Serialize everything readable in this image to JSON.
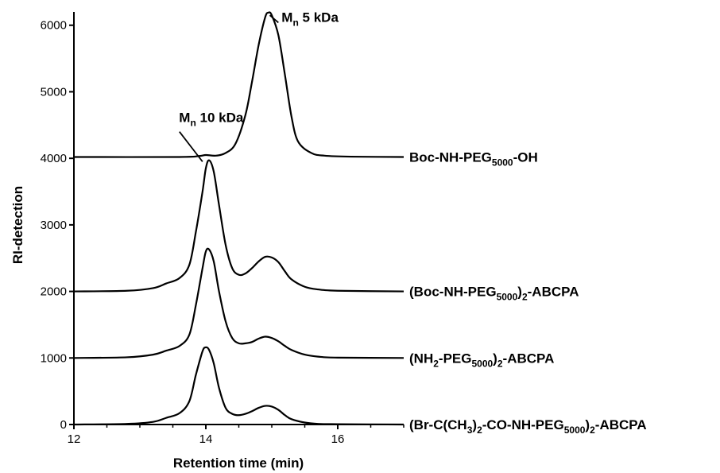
{
  "chart_data": {
    "type": "line",
    "xlabel": "Retention time (min)",
    "ylabel": "RI-detection",
    "xlim": [
      12,
      17
    ],
    "ylim": [
      0,
      6200
    ],
    "x_ticks": [
      "12",
      "14",
      "16"
    ],
    "y_ticks": [
      "0",
      "1000",
      "2000",
      "3000",
      "4000",
      "5000",
      "6000"
    ],
    "grid": false,
    "series": [
      {
        "name": "Boc-NH-PEG5000-OH",
        "label_parts": [
          {
            "t": "Boc-NH-PEG"
          },
          {
            "t": "5000",
            "sub": true
          },
          {
            "t": "-OH"
          }
        ],
        "x": [
          12.0,
          13.6,
          13.9,
          14.0,
          14.15,
          14.3,
          14.45,
          14.6,
          14.7,
          14.8,
          14.9,
          14.95,
          15.0,
          15.1,
          15.2,
          15.3,
          15.4,
          15.6,
          15.8,
          16.2,
          17.0
        ],
        "y": [
          4020,
          4020,
          4035,
          4050,
          4040,
          4080,
          4220,
          4650,
          5150,
          5700,
          6120,
          6190,
          6150,
          5850,
          5250,
          4620,
          4250,
          4080,
          4040,
          4025,
          4020
        ]
      },
      {
        "name": "(Boc-NH-PEG5000)2-ABCPA",
        "label_parts": [
          {
            "t": "(Boc-NH-PEG"
          },
          {
            "t": "5000",
            "sub": true
          },
          {
            "t": ")"
          },
          {
            "t": "2",
            "sub": true
          },
          {
            "t": "-ABCPA"
          }
        ],
        "x": [
          12.0,
          12.8,
          13.2,
          13.4,
          13.6,
          13.75,
          13.85,
          13.95,
          14.0,
          14.05,
          14.12,
          14.2,
          14.3,
          14.4,
          14.5,
          14.6,
          14.7,
          14.8,
          14.9,
          15.0,
          15.1,
          15.2,
          15.3,
          15.5,
          15.7,
          16.0,
          17.0
        ],
        "y": [
          2000,
          2010,
          2050,
          2120,
          2200,
          2400,
          2900,
          3500,
          3850,
          3970,
          3800,
          3300,
          2700,
          2350,
          2250,
          2270,
          2350,
          2450,
          2520,
          2510,
          2440,
          2300,
          2180,
          2070,
          2030,
          2010,
          2000
        ]
      },
      {
        "name": "(NH2-PEG5000)2-ABCPA",
        "label_parts": [
          {
            "t": "(NH"
          },
          {
            "t": "2",
            "sub": true
          },
          {
            "t": "-PEG"
          },
          {
            "t": "5000",
            "sub": true
          },
          {
            "t": ")"
          },
          {
            "t": "2",
            "sub": true
          },
          {
            "t": "-ABCPA"
          }
        ],
        "x": [
          12.0,
          12.8,
          13.2,
          13.4,
          13.6,
          13.75,
          13.85,
          13.95,
          14.0,
          14.05,
          14.12,
          14.2,
          14.3,
          14.4,
          14.5,
          14.6,
          14.7,
          14.8,
          14.9,
          15.0,
          15.1,
          15.2,
          15.3,
          15.5,
          15.7,
          16.0,
          17.0
        ],
        "y": [
          1000,
          1010,
          1050,
          1110,
          1180,
          1350,
          1800,
          2350,
          2600,
          2630,
          2450,
          2000,
          1550,
          1300,
          1220,
          1220,
          1240,
          1290,
          1320,
          1300,
          1250,
          1180,
          1120,
          1050,
          1020,
          1005,
          1000
        ]
      },
      {
        "name": "(Br-C(CH3)2-CO-NH-PEG5000)2-ABCPA",
        "label_parts": [
          {
            "t": "(Br-C(CH"
          },
          {
            "t": "3",
            "sub": true
          },
          {
            "t": ")"
          },
          {
            "t": "2",
            "sub": true
          },
          {
            "t": "-CO-NH-PEG"
          },
          {
            "t": "5000",
            "sub": true
          },
          {
            "t": ")"
          },
          {
            "t": "2",
            "sub": true
          },
          {
            "t": "-ABCPA"
          }
        ],
        "x": [
          12.0,
          12.8,
          13.2,
          13.4,
          13.6,
          13.75,
          13.85,
          13.95,
          14.0,
          14.05,
          14.12,
          14.2,
          14.3,
          14.4,
          14.5,
          14.6,
          14.7,
          14.8,
          14.9,
          15.0,
          15.1,
          15.2,
          15.3,
          15.5,
          15.7,
          16.0,
          17.0
        ],
        "y": [
          0,
          10,
          40,
          100,
          170,
          350,
          750,
          1100,
          1160,
          1120,
          920,
          550,
          250,
          160,
          140,
          160,
          200,
          250,
          280,
          270,
          220,
          140,
          80,
          30,
          10,
          5,
          0
        ]
      }
    ],
    "annotations": [
      {
        "parts": [
          {
            "t": "M"
          },
          {
            "t": "n",
            "sub": true
          },
          {
            "t": " 5 kDa"
          }
        ],
        "x": 14.97,
        "y": 6150,
        "from": [
          15.1,
          6040
        ]
      },
      {
        "parts": [
          {
            "t": "M"
          },
          {
            "t": "n",
            "sub": true
          },
          {
            "t": " 10 kDa"
          }
        ],
        "x": 13.95,
        "y": 3950,
        "from": [
          13.6,
          4400
        ]
      }
    ]
  }
}
